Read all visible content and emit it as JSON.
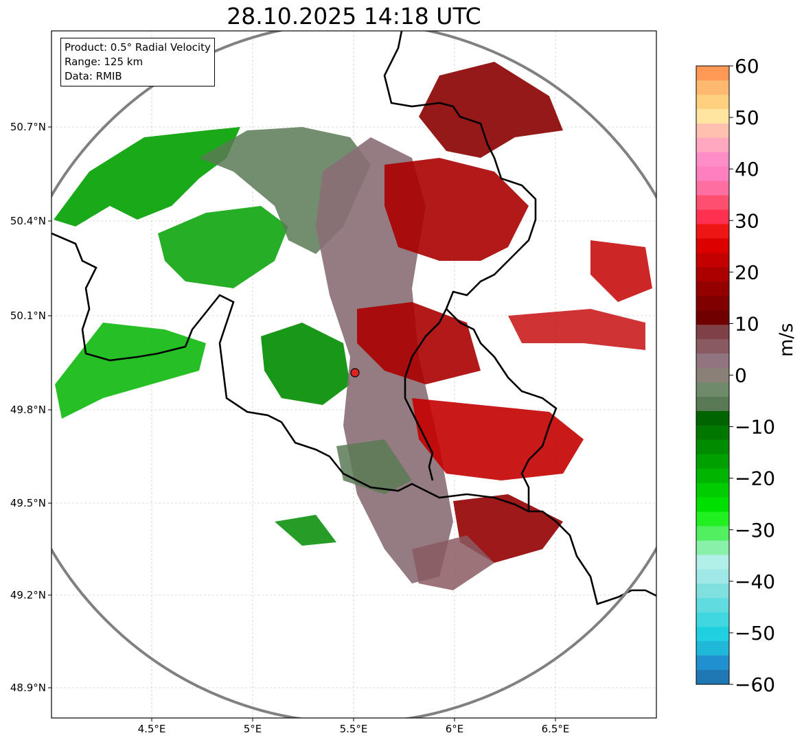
{
  "title": "28.10.2025 14:18 UTC",
  "info": {
    "product": "Product: 0.5° Radial Velocity",
    "range": "Range: 125 km",
    "data": "Data: RMIB"
  },
  "x_ticks": [
    "4.5°E",
    "5°E",
    "5.5°E",
    "6°E",
    "6.5°E"
  ],
  "y_ticks": [
    "50.7°N",
    "50.4°N",
    "50.1°N",
    "49.8°N",
    "49.5°N",
    "49.2°N",
    "48.9°N"
  ],
  "colorbar": {
    "label": "m/s",
    "ticks": [
      "60",
      "50",
      "40",
      "30",
      "20",
      "10",
      "0",
      "−10",
      "−20",
      "−30",
      "−40",
      "−50",
      "−60"
    ],
    "min": -60,
    "max": 60,
    "colors_top_to_bottom": [
      "#ff9955",
      "#ffb870",
      "#ffd080",
      "#ffe5a0",
      "#ffc0b0",
      "#ffa8c0",
      "#ff8ec8",
      "#ff80c0",
      "#ff6ea0",
      "#ff5070",
      "#ff3050",
      "#ee1515",
      "#dd0000",
      "#c40000",
      "#aa0000",
      "#940000",
      "#800000",
      "#700000",
      "#804048",
      "#8a5a62",
      "#907580",
      "#8a8078",
      "#6f8a6a",
      "#5a7a55",
      "#006400",
      "#007800",
      "#008c00",
      "#00a000",
      "#00b400",
      "#00cc00",
      "#00e000",
      "#20f020",
      "#50f060",
      "#88f0a8",
      "#b0f0e8",
      "#a0e8e8",
      "#80e0e0",
      "#60dce0",
      "#40d8e0",
      "#20d0e0",
      "#20b8d8",
      "#2090d0",
      "#1f77b4"
    ]
  },
  "radar": {
    "marker_color": "#dd2222",
    "ring_color": "#808080"
  }
}
